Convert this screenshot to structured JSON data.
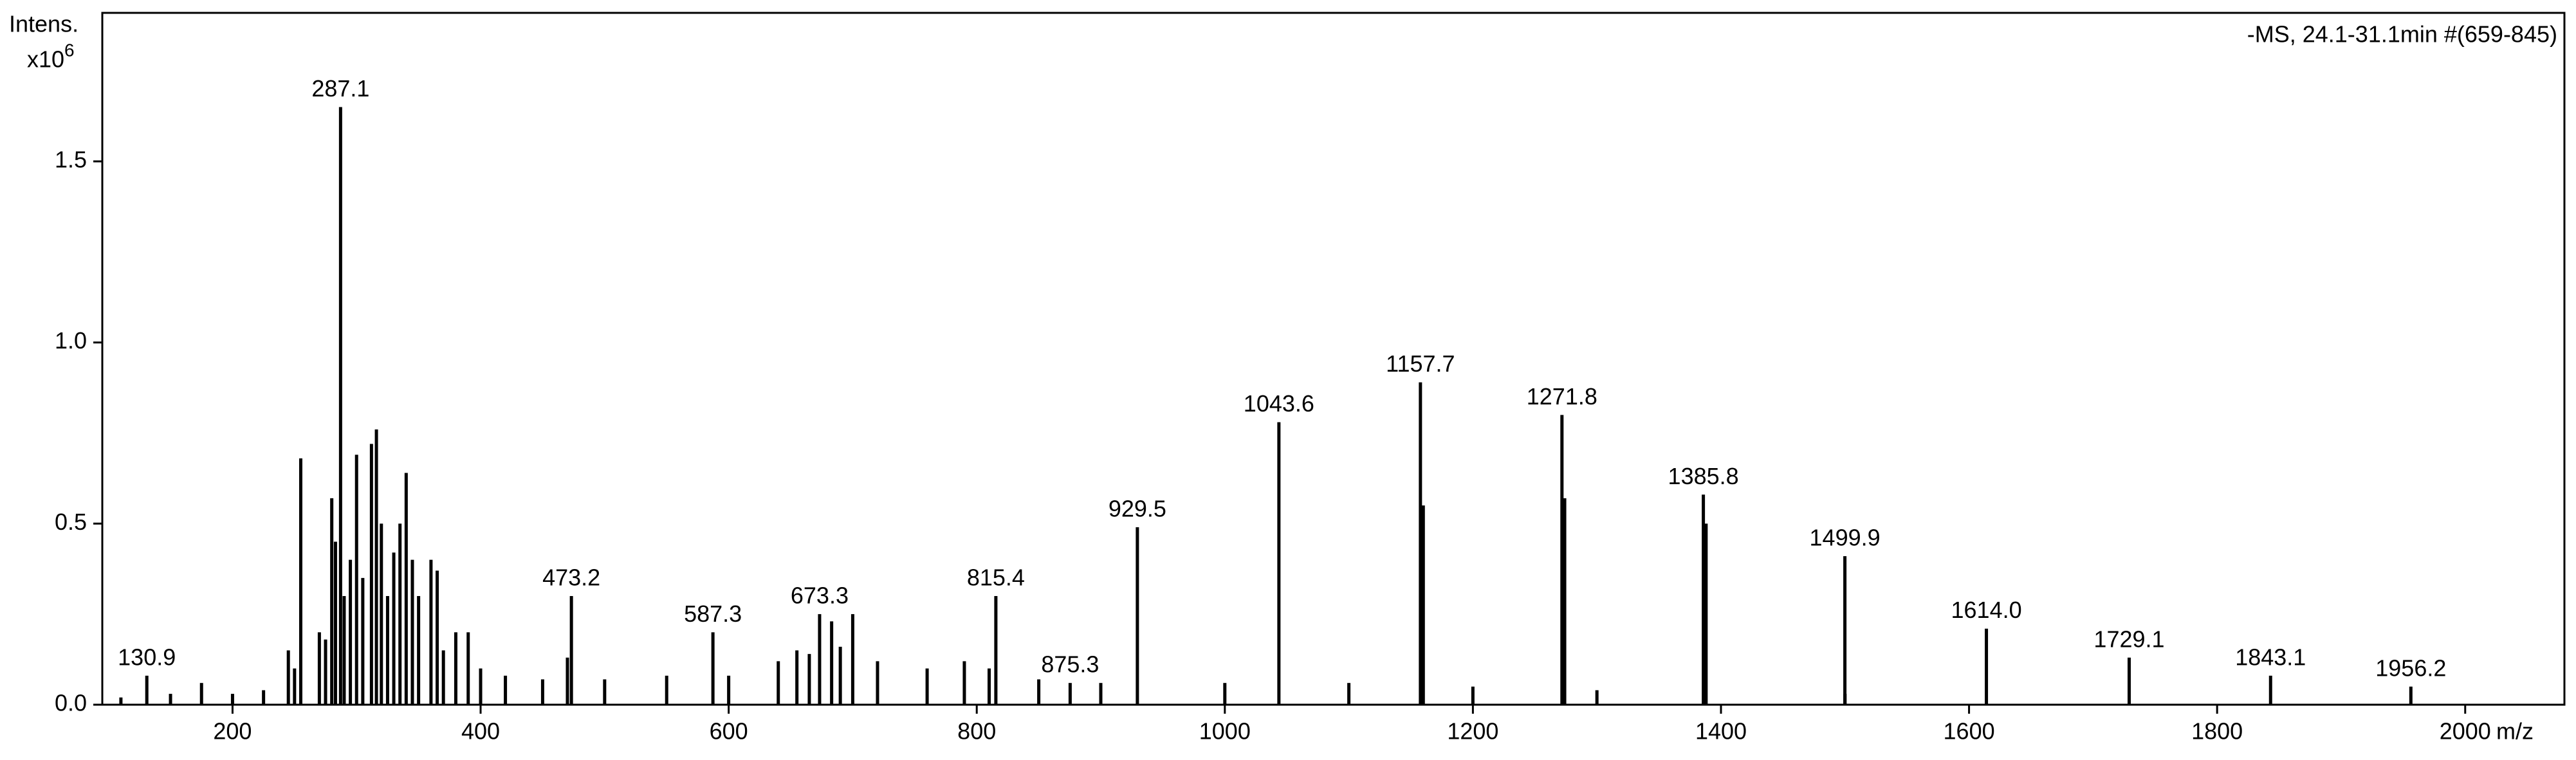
{
  "chart_data": {
    "type": "spectrum",
    "title": "-MS, 24.1-31.1min #(659-845)",
    "y_label": "Intens.",
    "y_unit": "x10",
    "y_exponent": "6",
    "x_label": "m/z",
    "xlim": [
      95,
      2080
    ],
    "ylim": [
      0,
      1.91
    ],
    "xticks": [
      200,
      400,
      600,
      800,
      1000,
      1200,
      1400,
      1600,
      1800,
      2000
    ],
    "yticks": [
      {
        "value": 0,
        "label": "0.0"
      },
      {
        "value": 0.5,
        "label": "0.5"
      },
      {
        "value": 1,
        "label": "1.0"
      },
      {
        "value": 1.5,
        "label": "1.5"
      }
    ],
    "series": [
      {
        "color": "#000000",
        "x": [
          130.9,
          287.1,
          473.2,
          587.3,
          673.3,
          815.4,
          875.3,
          929.5,
          1043.6,
          1157.7,
          1271.8,
          1385.8,
          1499.9,
          1614.0,
          1729.1,
          1843.1,
          1956.2
        ],
        "x_labels": [
          "130.9",
          "287.1",
          "473.2",
          "587.3",
          "673.3",
          "815.4",
          "875.3",
          "929.5",
          "1043.6",
          "1157.7",
          "1271.8",
          "1385.8",
          "1499.9",
          "1614.0",
          "1729.1",
          "1843.1",
          "1956.2"
        ],
        "values": [
          0.08,
          1.65,
          0.3,
          0.2,
          0.25,
          0.3,
          0.06,
          0.49,
          0.78,
          0.89,
          0.8,
          0.58,
          0.41,
          0.21,
          0.13,
          0.08,
          0.05
        ]
      },
      {
        "color": "#000000",
        "x": [
          110,
          150,
          175,
          200,
          225,
          245,
          250,
          255,
          270,
          275,
          280,
          283,
          290,
          295,
          300,
          305,
          312,
          316,
          320,
          325,
          330,
          335,
          340,
          345,
          350,
          360,
          365,
          370,
          380,
          390,
          400,
          420,
          450,
          470,
          500,
          550,
          600,
          640,
          655,
          665,
          683,
          690,
          700,
          720,
          760,
          790,
          810,
          850,
          900,
          1000,
          1100,
          1160,
          1200,
          1274,
          1300,
          1388,
          1500
        ],
        "values": [
          0.02,
          0.03,
          0.06,
          0.03,
          0.04,
          0.15,
          0.1,
          0.68,
          0.2,
          0.18,
          0.57,
          0.45,
          0.3,
          0.4,
          0.69,
          0.35,
          0.72,
          0.76,
          0.5,
          0.3,
          0.42,
          0.5,
          0.64,
          0.4,
          0.3,
          0.4,
          0.37,
          0.15,
          0.2,
          0.2,
          0.1,
          0.08,
          0.07,
          0.13,
          0.07,
          0.08,
          0.08,
          0.12,
          0.15,
          0.14,
          0.23,
          0.16,
          0.25,
          0.12,
          0.1,
          0.12,
          0.1,
          0.07,
          0.06,
          0.06,
          0.06,
          0.55,
          0.05,
          0.57,
          0.04,
          0.5,
          0.03
        ]
      }
    ]
  }
}
